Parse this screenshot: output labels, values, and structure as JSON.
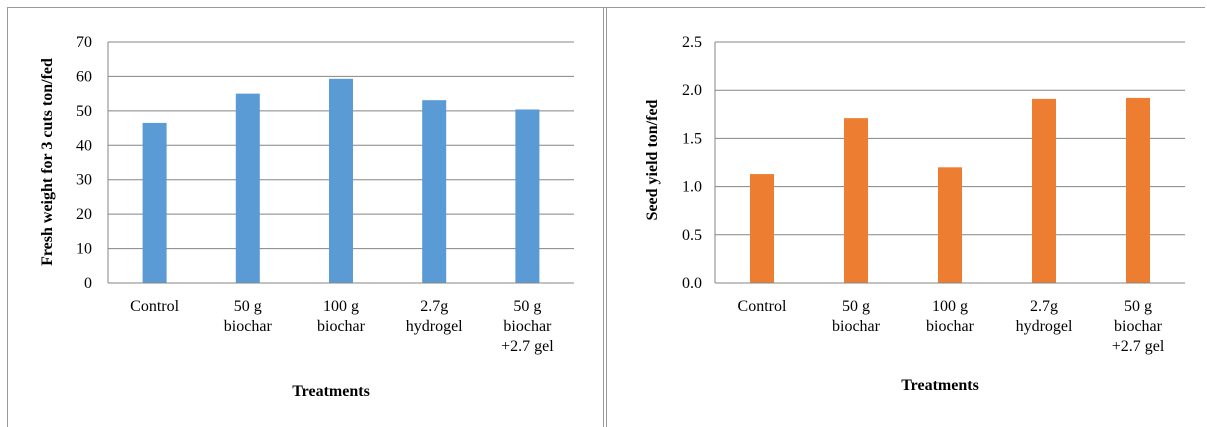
{
  "chart_data": [
    {
      "type": "bar",
      "categories": [
        [
          "Control"
        ],
        [
          "50 g",
          "biochar"
        ],
        [
          "100 g",
          "biochar"
        ],
        [
          "2.7g",
          "hydrogel"
        ],
        [
          "50 g",
          "biochar",
          "+2.7  gel"
        ]
      ],
      "values": [
        46.5,
        55.0,
        59.3,
        53.1,
        50.4
      ],
      "title": "",
      "xlabel": "Treatments",
      "ylabel": "Fresh weight for 3 cuts ton/fed",
      "ylim": [
        0,
        70
      ],
      "yticks": [
        "0",
        "10",
        "20",
        "30",
        "40",
        "50",
        "60",
        "70"
      ],
      "grid": true,
      "bar_color": "#5b9bd5"
    },
    {
      "type": "bar",
      "categories": [
        [
          "Control"
        ],
        [
          "50 g",
          "biochar"
        ],
        [
          "100 g",
          "biochar"
        ],
        [
          "2.7g",
          "hydrogel"
        ],
        [
          "50 g",
          "biochar",
          "+2.7  gel"
        ]
      ],
      "values": [
        1.13,
        1.71,
        1.2,
        1.91,
        1.92
      ],
      "title": "",
      "xlabel": "Treatments",
      "ylabel": "Seed yield ton/fed",
      "ylim": [
        0,
        2.5
      ],
      "yticks": [
        "0.0",
        "0.5",
        "1.0",
        "1.5",
        "2.0",
        "2.5"
      ],
      "grid": true,
      "bar_color": "#ed7d31"
    }
  ]
}
